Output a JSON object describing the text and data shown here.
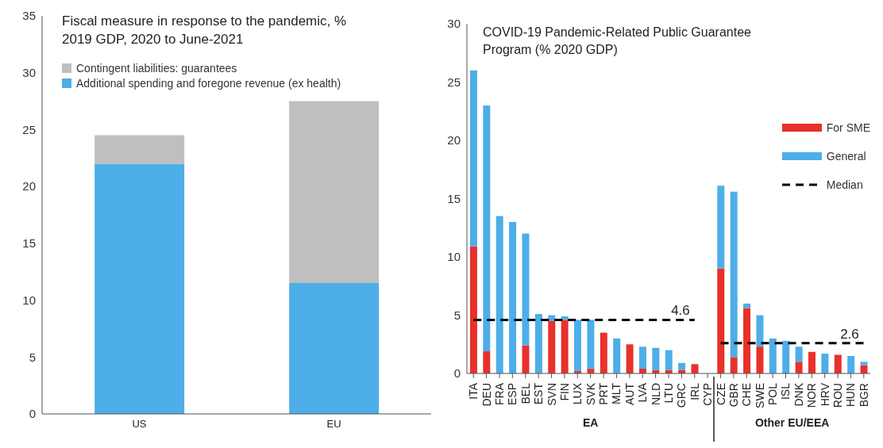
{
  "chart_data": [
    {
      "type": "bar",
      "title": "Fiscal measure in response to the pandemic, % 2019 GDP, 2020 to June-2021",
      "categories": [
        "US",
        "EU"
      ],
      "stacked": true,
      "series": [
        {
          "name": "Additional spending and foregone revenue (ex health)",
          "color": "#4daee8",
          "values": [
            22,
            11.5
          ]
        },
        {
          "name": "Contingent liabilities: guarantees",
          "color": "#bfbfbf",
          "values": [
            2.5,
            16
          ]
        }
      ],
      "ylim": [
        0,
        35
      ],
      "yticks": [
        0,
        5,
        10,
        15,
        20,
        25,
        30,
        35
      ],
      "legend": "top left"
    },
    {
      "type": "bar",
      "title": "COVID-19 Pandemic-Related Public Guarantee Program (% 2020 GDP)",
      "categories": [
        "ITA",
        "DEU",
        "FRA",
        "ESP",
        "BEL",
        "EST",
        "SVN",
        "FIN",
        "LUX",
        "SVK",
        "PRT",
        "MLT",
        "AUT",
        "LVA",
        "NLD",
        "LTU",
        "GRC",
        "IRL",
        "CYP",
        "CZE",
        "GBR",
        "CHE",
        "SWE",
        "POL",
        "ISL",
        "DNK",
        "NOR",
        "HRV",
        "ROU",
        "HUN",
        "BGR"
      ],
      "stacked": true,
      "series": [
        {
          "name": "For SME",
          "color": "#e8312a",
          "values": [
            10.9,
            1.9,
            0,
            0,
            2.4,
            0,
            4.5,
            4.6,
            0.2,
            0.4,
            3.5,
            0,
            2.5,
            0.4,
            0.3,
            0.3,
            0.3,
            0.8,
            0,
            9.0,
            1.4,
            5.6,
            2.3,
            0,
            0,
            1.0,
            1.85,
            0,
            1.6,
            0,
            0.7
          ]
        },
        {
          "name": "General",
          "color": "#4daee8",
          "values": [
            15.1,
            21.1,
            13.5,
            13.0,
            9.6,
            5.1,
            0.5,
            0.3,
            4.4,
            4.2,
            0,
            3.0,
            0,
            1.9,
            1.9,
            1.7,
            0.6,
            0,
            0,
            7.1,
            14.2,
            0.4,
            2.7,
            3.0,
            2.8,
            1.3,
            0,
            1.7,
            0,
            1.5,
            0.3
          ]
        },
        {
          "name": "Median",
          "type": "line",
          "color": "#000000",
          "line_style": "dashed",
          "marker": "none",
          "values": [
            4.6,
            4.6,
            4.6,
            4.6,
            4.6,
            4.6,
            4.6,
            4.6,
            4.6,
            4.6,
            4.6,
            4.6,
            4.6,
            4.6,
            4.6,
            4.6,
            4.6,
            4.6,
            null,
            2.6,
            2.6,
            2.6,
            2.6,
            2.6,
            2.6,
            2.6,
            2.6,
            2.6,
            2.6,
            2.6,
            2.6
          ]
        }
      ],
      "annotations": [
        {
          "text": "4.6",
          "x": "IRL",
          "y": 4.6
        },
        {
          "text": "2.6",
          "x": "BGR",
          "y": 2.6
        },
        "EA",
        "Other EU/EEA"
      ],
      "ylim": [
        0,
        30
      ],
      "yticks": [
        0,
        5,
        10,
        15,
        20,
        25,
        30
      ],
      "legend": "right"
    }
  ]
}
